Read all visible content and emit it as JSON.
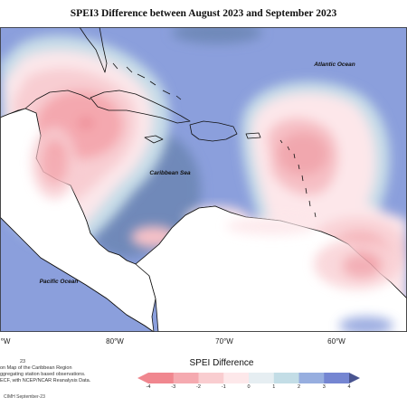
{
  "title": "SPEI3 Difference between August 2023 and September 2023",
  "map": {
    "labels": {
      "atlantic": "Atlantic Ocean",
      "caribbean": "Caribbean Sea",
      "pacific": "Pacific Ocean"
    },
    "longitude_labels": [
      "°W",
      "80°W",
      "70°W",
      "60°W"
    ]
  },
  "legend": {
    "title": "SPEI Difference",
    "ticks": [
      "-4",
      "-3",
      "-2",
      "-1",
      "0",
      "1",
      "2",
      "3",
      "4"
    ],
    "colors": [
      "#f0878f",
      "#f5aab0",
      "#f9cdd0",
      "#fde8ea",
      "#e6eef2",
      "#c3dde6",
      "#97aedf",
      "#7586d2",
      "#495490"
    ]
  },
  "notes": {
    "line1": "23",
    "line2": "on Map of the Caribbean Region",
    "line3": "ggregating station based observations.",
    "line4": "ECF, with NCEP/NCAR Reanalysis Data."
  },
  "credit": "CIMH September-23",
  "colors": {
    "ocean_base": "#8b9fdc",
    "deep_blue": "#6f89b9",
    "land": "#ffffff",
    "coast": "#111111"
  }
}
